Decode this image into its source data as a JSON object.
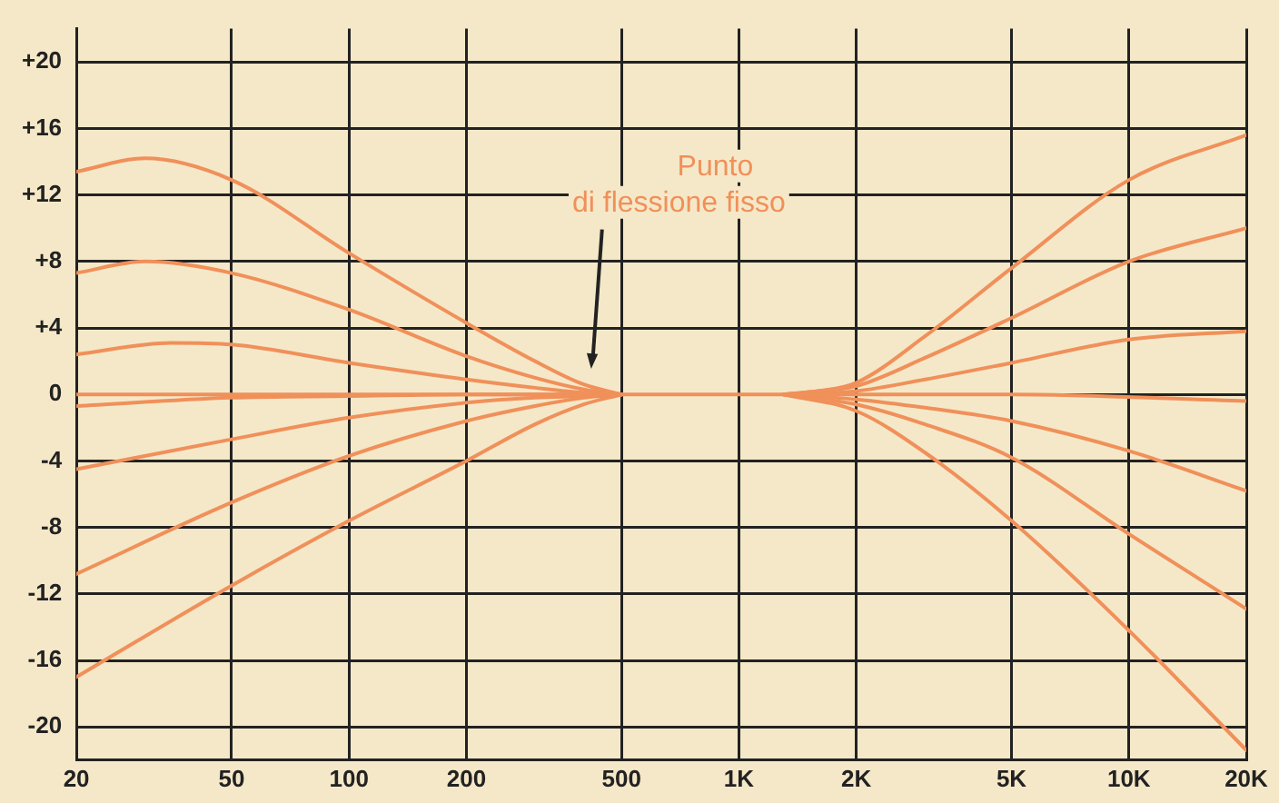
{
  "chart_data": {
    "type": "line",
    "log": "x",
    "grid": true,
    "legend": false,
    "marker": "none",
    "line_style": "solid",
    "xlim": [
      20,
      20000
    ],
    "xticks": [
      20,
      50,
      100,
      200,
      500,
      {
        "value": 1000,
        "label": "1K"
      },
      {
        "value": 2000,
        "label": "2K"
      },
      {
        "value": 5000,
        "label": "5K"
      },
      {
        "value": 10000,
        "label": "10K"
      },
      {
        "value": 20000,
        "label": "20K"
      }
    ],
    "ylim": [
      -22,
      22
    ],
    "yticks": [
      {
        "value": 20,
        "label": "+20"
      },
      {
        "value": 16,
        "label": "+16"
      },
      {
        "value": 12,
        "label": "+12"
      },
      {
        "value": 8,
        "label": "+8"
      },
      {
        "value": 4,
        "label": "+4"
      },
      0,
      -4,
      -8,
      -12,
      -16,
      -20
    ],
    "annotations": [
      "Punto\ndi flessione fisso"
    ],
    "series": [
      {
        "color": "#f0905a",
        "x": [
          20,
          30,
          50,
          100,
          200,
          300,
          400,
          500
        ],
        "values": [
          13.4,
          14.2,
          12.9,
          8.5,
          4.3,
          2,
          0.6,
          0
        ]
      },
      {
        "color": "#f0905a",
        "x": [
          20,
          30,
          50,
          100,
          200,
          300,
          400,
          500
        ],
        "values": [
          7.3,
          8,
          7.3,
          5.1,
          2.3,
          1,
          0.3,
          0
        ]
      },
      {
        "color": "#f0905a",
        "x": [
          20,
          35,
          50,
          100,
          200,
          300,
          400,
          500
        ],
        "values": [
          2.4,
          3.1,
          3,
          1.9,
          0.9,
          0.4,
          0.1,
          0
        ]
      },
      {
        "color": "#f0905a",
        "x": [
          20,
          5000,
          20000
        ],
        "values": [
          0,
          0,
          -0.4
        ]
      },
      {
        "color": "#f0905a",
        "x": [
          20,
          50,
          100,
          200,
          500
        ],
        "values": [
          -0.7,
          -0.2,
          -0.1,
          0,
          0
        ]
      },
      {
        "color": "#f0905a",
        "x": [
          20,
          50,
          100,
          200,
          300,
          400,
          500
        ],
        "values": [
          -4.5,
          -2.7,
          -1.4,
          -0.5,
          -0.2,
          -0.1,
          0
        ]
      },
      {
        "color": "#f0905a",
        "x": [
          20,
          50,
          100,
          200,
          300,
          400,
          500
        ],
        "values": [
          -10.8,
          -6.5,
          -3.7,
          -1.6,
          -0.7,
          -0.2,
          0
        ]
      },
      {
        "color": "#f0905a",
        "x": [
          20,
          50,
          100,
          200,
          300,
          400,
          500
        ],
        "values": [
          -17,
          -11.5,
          -7.6,
          -4,
          -1.8,
          -0.6,
          0
        ]
      },
      {
        "color": "#f0905a",
        "x": [
          1300,
          1600,
          2000,
          3000,
          5000,
          10000,
          20000
        ],
        "values": [
          0,
          0.2,
          0.7,
          3.5,
          7.6,
          12.9,
          15.6
        ]
      },
      {
        "color": "#f0905a",
        "x": [
          1300,
          1600,
          2000,
          3000,
          5000,
          10000,
          20000
        ],
        "values": [
          0,
          0.2,
          0.5,
          2.2,
          4.6,
          8,
          10
        ]
      },
      {
        "color": "#f0905a",
        "x": [
          1300,
          2000,
          3000,
          5000,
          10000,
          20000
        ],
        "values": [
          0,
          0.2,
          0.9,
          1.9,
          3.3,
          3.8
        ]
      },
      {
        "color": "#f0905a",
        "x": [
          1300,
          2000,
          3000,
          5000,
          10000,
          20000
        ],
        "values": [
          0,
          -0.3,
          -0.8,
          -1.6,
          -3.4,
          -5.8
        ]
      },
      {
        "color": "#f0905a",
        "x": [
          1300,
          2000,
          3000,
          5000,
          10000,
          20000
        ],
        "values": [
          0,
          -0.6,
          -1.8,
          -3.8,
          -8.4,
          -12.9
        ]
      },
      {
        "color": "#f0905a",
        "x": [
          1300,
          2000,
          3000,
          5000,
          10000,
          20000
        ],
        "values": [
          0,
          -1,
          -3.5,
          -7.6,
          -14.2,
          -21.4
        ]
      }
    ]
  }
}
